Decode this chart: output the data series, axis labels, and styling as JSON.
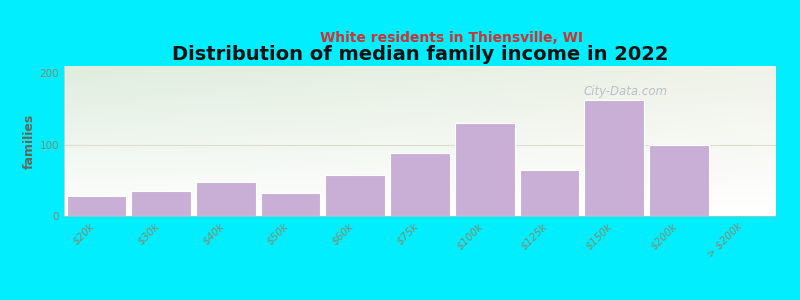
{
  "title": "Distribution of median family income in 2022",
  "subtitle": "White residents in Thiensville, WI",
  "ylabel": "families",
  "categories": [
    "$20k",
    "$30k",
    "$40k",
    "$50k",
    "$60k",
    "$75k",
    "$100k",
    "$125k",
    "$150k",
    "$200k",
    "> $200k"
  ],
  "values": [
    28,
    35,
    48,
    32,
    57,
    88,
    130,
    65,
    163,
    100,
    0
  ],
  "bar_lefts": [
    0,
    1,
    2,
    3,
    4,
    5,
    6,
    7,
    8,
    9,
    10
  ],
  "bar_widths": [
    0.85,
    0.85,
    0.85,
    0.85,
    0.85,
    0.85,
    0.85,
    0.85,
    0.85,
    0.85,
    0.85
  ],
  "bar_color": "#c9aed6",
  "bar_edgecolor": "#c9aed6",
  "background_color": "#00eeff",
  "plot_bg_topleft": "#deeedd",
  "plot_bg_topright": "#f0f0e8",
  "plot_bg_bottom": "#ffffff",
  "title_fontsize": 14,
  "subtitle_fontsize": 10,
  "subtitle_color": "#cc3333",
  "ylabel_fontsize": 9,
  "tick_fontsize": 7.5,
  "tick_color": "#888866",
  "ylim": [
    0,
    210
  ],
  "yticks": [
    0,
    100,
    200
  ],
  "watermark": "City-Data.com",
  "watermark_color": "#b0b8c0",
  "grid100_color": "#ddddcc"
}
